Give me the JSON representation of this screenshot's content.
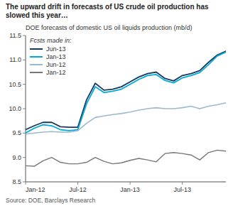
{
  "chart_data": {
    "type": "line",
    "title": "The upward drift in forecasts of US crude oil production has\nslowed this year…",
    "subtitle": "DOE forecasts of domestic US oil liquids production (mb/d)",
    "legend_title": "Fcsts made in:",
    "source": "Source:  DOE, Barclays Research",
    "x": [
      0,
      1,
      2,
      3,
      4,
      5,
      6,
      7,
      8,
      9,
      10,
      11,
      12,
      13,
      14,
      15,
      16,
      17,
      18,
      19,
      20,
      21,
      22,
      23
    ],
    "xlim": [
      0,
      23
    ],
    "xticks": [
      {
        "value": 0,
        "label": "Jan-12"
      },
      {
        "value": 6,
        "label": "Jul-12"
      },
      {
        "value": 12,
        "label": "Jan-13"
      },
      {
        "value": 18,
        "label": "Jul-13"
      }
    ],
    "ylim": [
      8.5,
      11.5
    ],
    "yticks": [
      8.5,
      {
        "value": 9.0,
        "label": "9.0"
      },
      9.5,
      {
        "value": 10.0,
        "label": "10.0"
      },
      10.5,
      {
        "value": 11.0,
        "label": "11.0"
      },
      11.5
    ],
    "grid": false,
    "legend": "upper left",
    "series": [
      {
        "name": "Jun-13",
        "color": "#1a3a5c",
        "values": [
          9.57,
          9.65,
          9.72,
          9.72,
          9.63,
          9.62,
          9.62,
          10.18,
          10.52,
          10.38,
          10.4,
          10.45,
          10.55,
          10.65,
          10.72,
          10.75,
          10.62,
          10.57,
          10.68,
          10.72,
          10.78,
          10.95,
          11.1,
          11.18
        ]
      },
      {
        "name": "Jan-13",
        "color": "#00AADD",
        "values": [
          9.5,
          9.6,
          9.67,
          9.65,
          9.57,
          9.55,
          9.57,
          10.1,
          10.45,
          10.33,
          10.36,
          10.4,
          10.5,
          10.6,
          10.68,
          10.7,
          10.58,
          10.53,
          10.63,
          10.68,
          10.74,
          10.9,
          11.08,
          11.16
        ]
      },
      {
        "name": "Jun-12",
        "color": "#99BBCC",
        "values": [
          9.48,
          9.5,
          9.52,
          9.53,
          9.52,
          9.52,
          9.55,
          9.7,
          9.82,
          9.85,
          9.88,
          9.9,
          9.93,
          9.97,
          10.0,
          10.02,
          10.0,
          10.0,
          10.02,
          10.05,
          10.0,
          10.05,
          10.08,
          10.12
        ]
      },
      {
        "name": "Jan-12",
        "color": "#777777",
        "values": [
          8.83,
          8.82,
          8.93,
          9.0,
          8.9,
          8.87,
          8.87,
          8.9,
          9.0,
          8.92,
          8.87,
          8.89,
          8.94,
          8.98,
          8.95,
          8.91,
          9.08,
          9.1,
          9.08,
          9.05,
          8.95,
          9.1,
          9.15,
          9.13
        ]
      }
    ]
  }
}
